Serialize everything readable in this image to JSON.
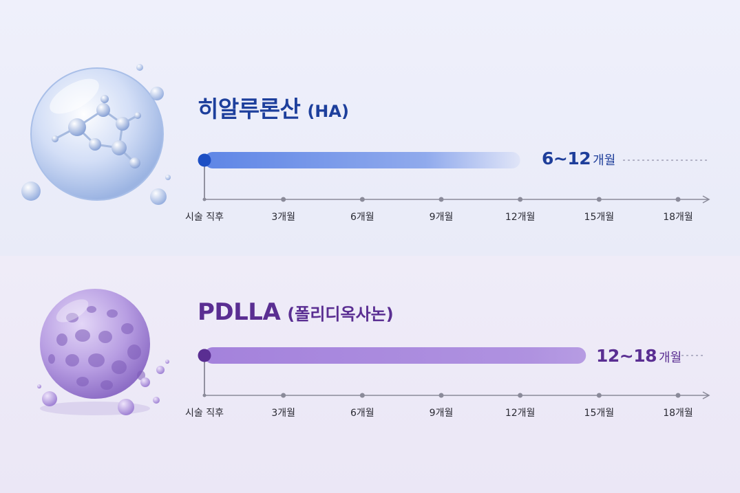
{
  "colors": {
    "ha_title": "#1d3f9c",
    "ha_bar": "#5f86e6",
    "ha_marker": "#1d4fc4",
    "pdlla_title": "#5a2e92",
    "pdlla_bar": "#a482dc",
    "pdlla_marker": "#5a2e92",
    "axis": "#8a8a99"
  },
  "icons": {
    "ha": "hyaluronic-acid-molecule-bubble-icon",
    "pdlla": "porous-pdlla-sphere-icon"
  },
  "chart_data": [
    {
      "type": "bar",
      "title": "히알루론산",
      "subtitle": "(HA)",
      "orientation": "horizontal",
      "x_ticks": [
        "시술 직후",
        "3개월",
        "6개월",
        "9개월",
        "12개월",
        "15개월",
        "18개월"
      ],
      "xlim": [
        0,
        18
      ],
      "series": [
        {
          "start": 0,
          "end": 12,
          "range": [
            6,
            12
          ]
        }
      ],
      "range_label": {
        "value": "6~12",
        "unit": "개월"
      }
    },
    {
      "type": "bar",
      "title": "PDLLA",
      "subtitle": "(폴리디옥사논)",
      "orientation": "horizontal",
      "x_ticks": [
        "시술 직후",
        "3개월",
        "6개월",
        "9개월",
        "12개월",
        "15개월",
        "18개월"
      ],
      "xlim": [
        0,
        18
      ],
      "series": [
        {
          "start": 0,
          "end": 14.5,
          "range": [
            12,
            18
          ]
        }
      ],
      "range_label": {
        "value": "12~18",
        "unit": "개월"
      }
    }
  ]
}
